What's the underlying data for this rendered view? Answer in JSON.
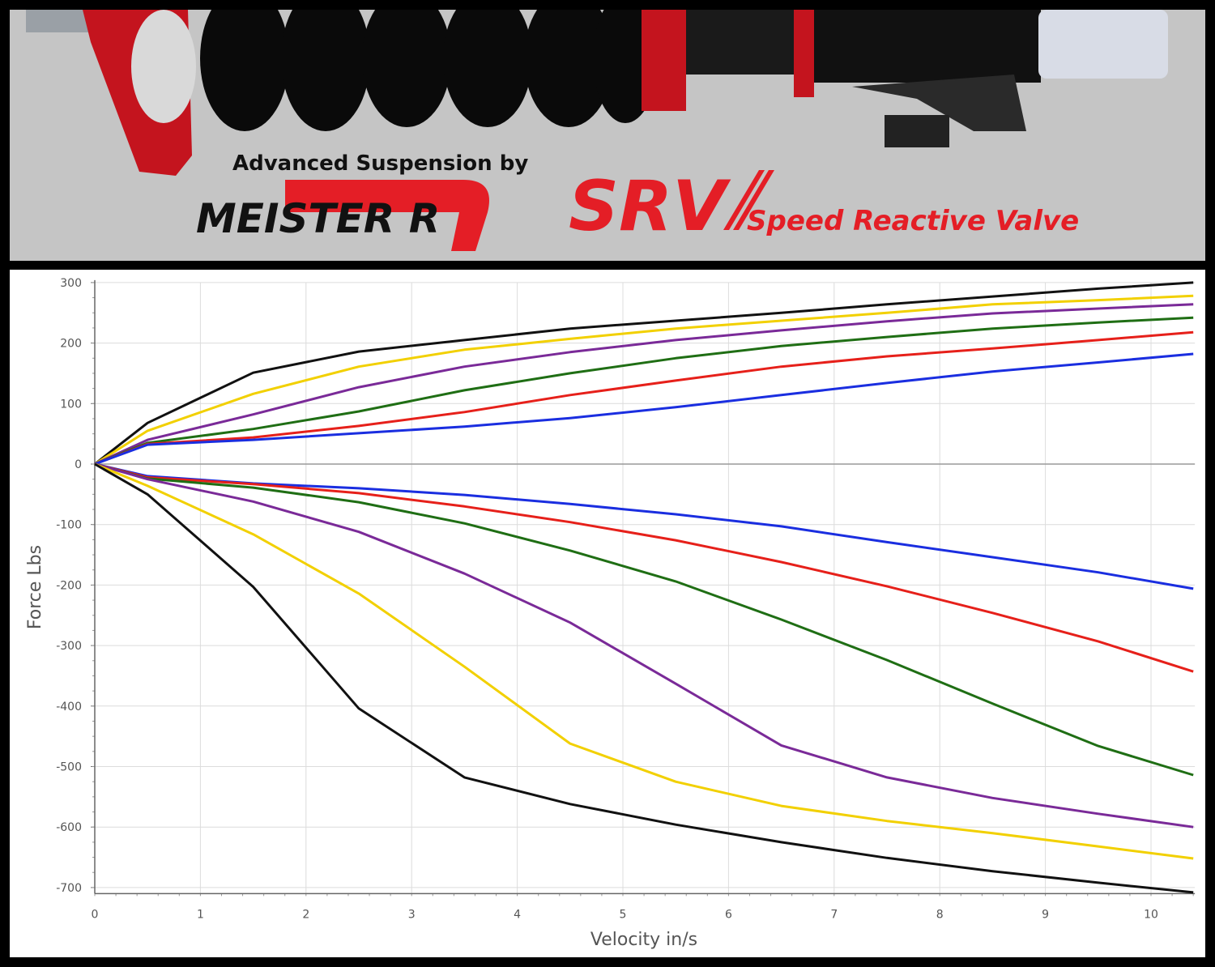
{
  "banner": {
    "tagline": "Advanced Suspension by",
    "brand_logo_text": "MEISTER R",
    "product_logo_text": "SRV",
    "product_name": "Speed Reactive Valve"
  },
  "chart_data": {
    "type": "line",
    "title": "",
    "xlabel": "Velocity in/s",
    "ylabel": "Force Lbs",
    "xlim": [
      0,
      10.4
    ],
    "ylim": [
      -710,
      300
    ],
    "grid": true,
    "legend": "none",
    "x_ticks": [
      "0",
      "1",
      "2",
      "3",
      "4",
      "5",
      "6",
      "7",
      "8",
      "9",
      "10"
    ],
    "y_ticks": [
      "300",
      "200",
      "100",
      "0",
      "-100",
      "-200",
      "-300",
      "-400",
      "-500",
      "-600",
      "-700"
    ],
    "x": [
      0,
      0.5,
      1.5,
      2.5,
      3.5,
      4.5,
      5.5,
      6.5,
      7.5,
      8.5,
      9.5,
      10.4
    ],
    "series": [
      {
        "color": "#111111",
        "values": [
          0,
          68,
          151,
          186,
          205,
          224,
          237,
          250,
          264,
          277,
          290,
          300
        ]
      },
      {
        "color": "#f2d000",
        "values": [
          0,
          55,
          116,
          161,
          189,
          207,
          224,
          237,
          250,
          264,
          271,
          278
        ]
      },
      {
        "color": "#7a2a98",
        "values": [
          0,
          40,
          82,
          127,
          161,
          185,
          205,
          221,
          236,
          249,
          257,
          264
        ]
      },
      {
        "color": "#1f6e14",
        "values": [
          0,
          35,
          58,
          87,
          122,
          150,
          175,
          195,
          210,
          224,
          234,
          242
        ]
      },
      {
        "color": "#e6201a",
        "values": [
          0,
          33,
          44,
          63,
          86,
          114,
          138,
          161,
          178,
          191,
          205,
          218
        ]
      },
      {
        "color": "#1a2ee0",
        "values": [
          0,
          32,
          40,
          51,
          62,
          76,
          94,
          114,
          134,
          153,
          168,
          182
        ]
      },
      {
        "color": "#1a2ee0",
        "values": [
          0,
          -20,
          -32,
          -40,
          -51,
          -66,
          -83,
          -103,
          -129,
          -154,
          -179,
          -206
        ]
      },
      {
        "color": "#e6201a",
        "values": [
          0,
          -22,
          -33,
          -48,
          -70,
          -96,
          -126,
          -162,
          -202,
          -246,
          -293,
          -343
        ]
      },
      {
        "color": "#1f6e14",
        "values": [
          0,
          -24,
          -39,
          -63,
          -98,
          -143,
          -194,
          -257,
          -324,
          -396,
          -466,
          -514
        ]
      },
      {
        "color": "#7a2a98",
        "values": [
          0,
          -25,
          -62,
          -112,
          -181,
          -262,
          -363,
          -465,
          -518,
          -552,
          -578,
          -600
        ]
      },
      {
        "color": "#f2d000",
        "values": [
          0,
          -36,
          -116,
          -214,
          -335,
          -462,
          -525,
          -565,
          -590,
          -610,
          -632,
          -652
        ]
      },
      {
        "color": "#111111",
        "values": [
          0,
          -50,
          -203,
          -404,
          -518,
          -562,
          -596,
          -625,
          -651,
          -673,
          -692,
          -708
        ]
      }
    ]
  }
}
